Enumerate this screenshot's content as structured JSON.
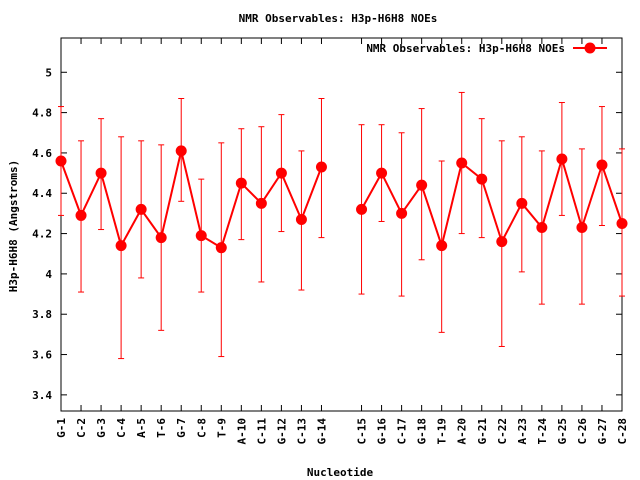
{
  "chart_data": {
    "type": "line",
    "title": "NMR Observables: H3p-H6H8 NOEs",
    "xlabel": "Nucleotide",
    "ylabel": "H3p-H6H8 (Angstroms)",
    "ylim": [
      3.32,
      5.17
    ],
    "yticks": [
      3.4,
      3.6,
      3.8,
      4,
      4.2,
      4.4,
      4.6,
      4.8,
      5
    ],
    "ytick_labels": [
      "3.4",
      "3.6",
      "3.8",
      "4",
      "4.2",
      "4.4",
      "4.6",
      "4.8",
      "5"
    ],
    "grid": false,
    "legend": "top-right",
    "color": "#ff0000",
    "series": [
      {
        "name": "NMR Observables: H3p-H6H8 NOEs",
        "points": [
          {
            "x": 1,
            "label": "G-1",
            "y": 4.56,
            "lo": 4.29,
            "hi": 4.83
          },
          {
            "x": 2,
            "label": "C-2",
            "y": 4.29,
            "lo": 3.91,
            "hi": 4.66
          },
          {
            "x": 3,
            "label": "G-3",
            "y": 4.5,
            "lo": 4.22,
            "hi": 4.77
          },
          {
            "x": 4,
            "label": "C-4",
            "y": 4.14,
            "lo": 3.58,
            "hi": 4.68
          },
          {
            "x": 5,
            "label": "A-5",
            "y": 4.32,
            "lo": 3.98,
            "hi": 4.66
          },
          {
            "x": 6,
            "label": "T-6",
            "y": 4.18,
            "lo": 3.72,
            "hi": 4.64
          },
          {
            "x": 7,
            "label": "G-7",
            "y": 4.61,
            "lo": 4.36,
            "hi": 4.87
          },
          {
            "x": 8,
            "label": "C-8",
            "y": 4.19,
            "lo": 3.91,
            "hi": 4.47
          },
          {
            "x": 9,
            "label": "T-9",
            "y": 4.13,
            "lo": 3.59,
            "hi": 4.65
          },
          {
            "x": 10,
            "label": "A-10",
            "y": 4.45,
            "lo": 4.17,
            "hi": 4.72
          },
          {
            "x": 11,
            "label": "C-11",
            "y": 4.35,
            "lo": 3.96,
            "hi": 4.73
          },
          {
            "x": 12,
            "label": "G-12",
            "y": 4.5,
            "lo": 4.21,
            "hi": 4.79
          },
          {
            "x": 13,
            "label": "C-13",
            "y": 4.27,
            "lo": 3.92,
            "hi": 4.61
          },
          {
            "x": 14,
            "label": "G-14",
            "y": 4.53,
            "lo": 4.18,
            "hi": 4.87
          },
          {
            "x": 16,
            "label": "C-15",
            "y": 4.32,
            "lo": 3.9,
            "hi": 4.74
          },
          {
            "x": 17,
            "label": "G-16",
            "y": 4.5,
            "lo": 4.26,
            "hi": 4.74
          },
          {
            "x": 18,
            "label": "C-17",
            "y": 4.3,
            "lo": 3.89,
            "hi": 4.7
          },
          {
            "x": 19,
            "label": "G-18",
            "y": 4.44,
            "lo": 4.07,
            "hi": 4.82
          },
          {
            "x": 20,
            "label": "T-19",
            "y": 4.14,
            "lo": 3.71,
            "hi": 4.56
          },
          {
            "x": 21,
            "label": "A-20",
            "y": 4.55,
            "lo": 4.2,
            "hi": 4.9
          },
          {
            "x": 22,
            "label": "G-21",
            "y": 4.47,
            "lo": 4.18,
            "hi": 4.77
          },
          {
            "x": 23,
            "label": "C-22",
            "y": 4.16,
            "lo": 3.64,
            "hi": 4.66
          },
          {
            "x": 24,
            "label": "A-23",
            "y": 4.35,
            "lo": 4.01,
            "hi": 4.68
          },
          {
            "x": 25,
            "label": "T-24",
            "y": 4.23,
            "lo": 3.85,
            "hi": 4.61
          },
          {
            "x": 26,
            "label": "G-25",
            "y": 4.57,
            "lo": 4.29,
            "hi": 4.85
          },
          {
            "x": 27,
            "label": "C-26",
            "y": 4.23,
            "lo": 3.85,
            "hi": 4.62
          },
          {
            "x": 28,
            "label": "G-27",
            "y": 4.54,
            "lo": 4.24,
            "hi": 4.83
          },
          {
            "x": 29,
            "label": "C-28",
            "y": 4.25,
            "lo": 3.89,
            "hi": 4.62
          }
        ]
      }
    ]
  }
}
